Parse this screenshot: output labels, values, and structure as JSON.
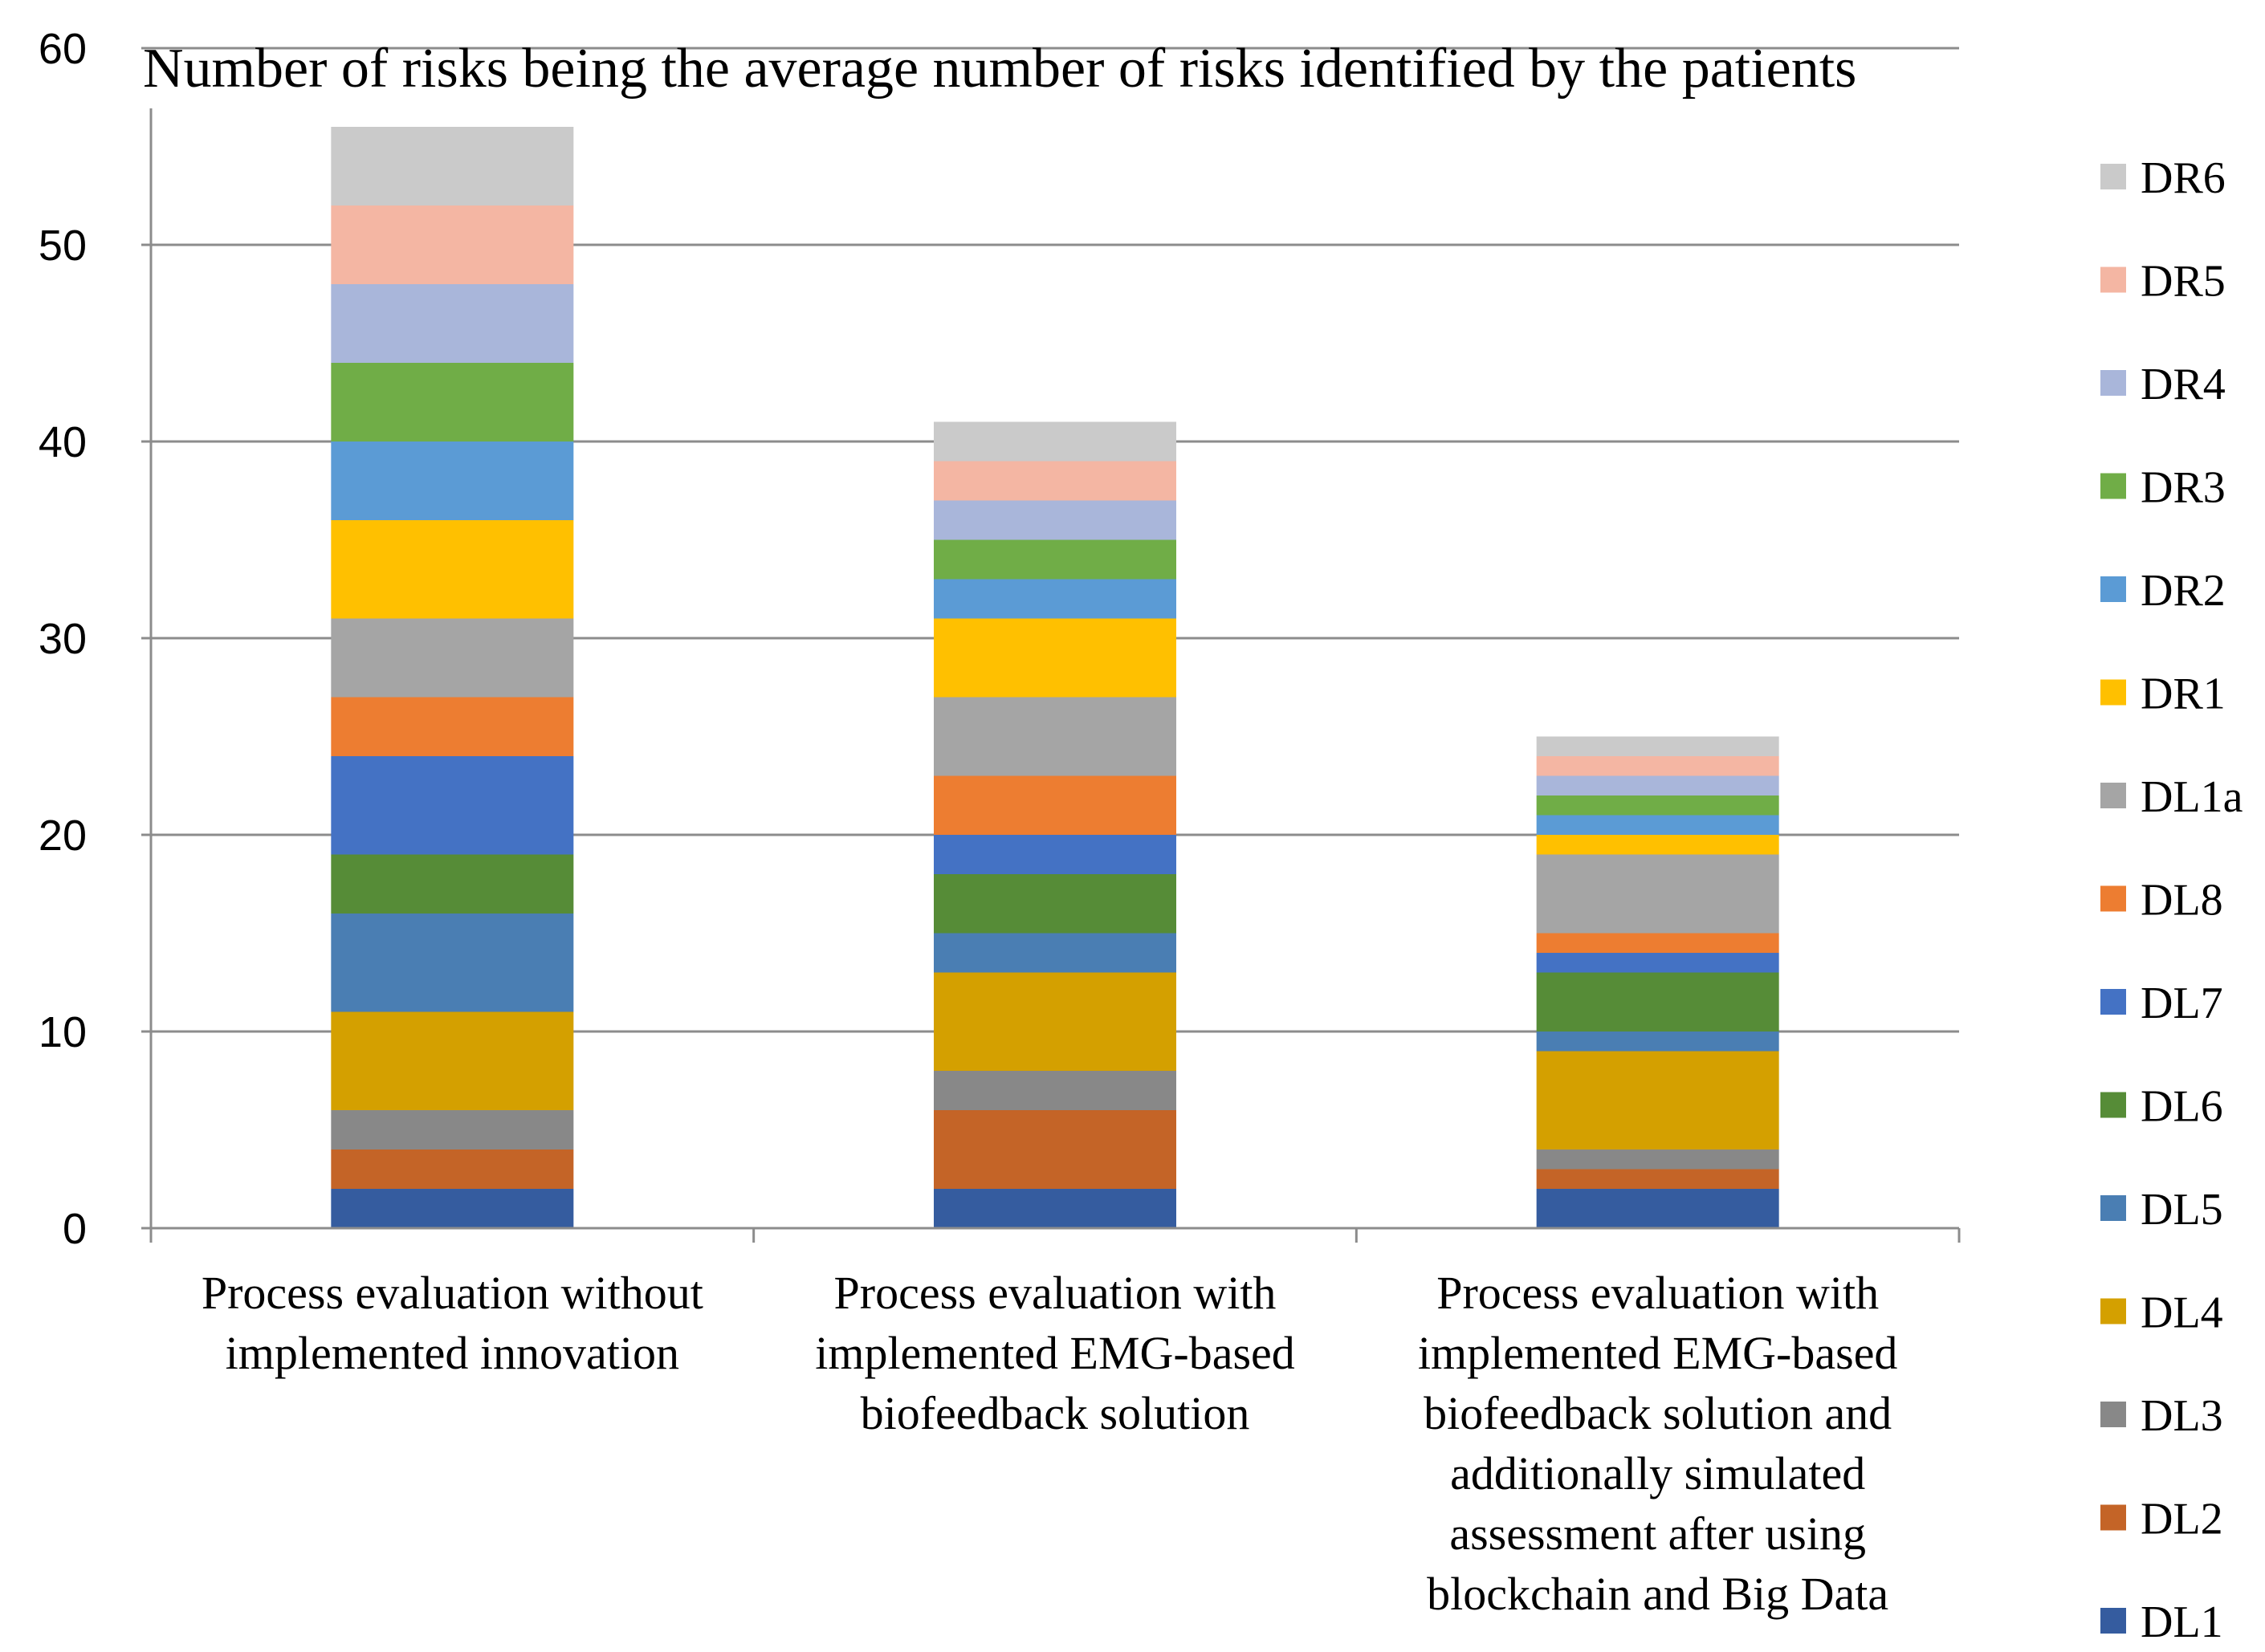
{
  "chart_data": {
    "type": "bar",
    "stacked": true,
    "title": "Number of risks being the average number of risks identified by the patients",
    "ylim": [
      0,
      60
    ],
    "yticks": [
      0,
      10,
      20,
      30,
      40,
      50,
      60
    ],
    "grid": true,
    "legend_position": "right",
    "categories": [
      [
        "Process evaluation without",
        "implemented innovation"
      ],
      [
        "Process evaluation with",
        "implemented EMG-based",
        "biofeedback solution"
      ],
      [
        "Process evaluation with",
        "implemented EMG-based",
        "biofeedback solution and",
        "additionally simulated",
        "assessment after using",
        "blockchain and Big Data"
      ]
    ],
    "series": [
      {
        "name": "DL1",
        "color": "#355C9F",
        "values": [
          2,
          2,
          2
        ]
      },
      {
        "name": "DL2",
        "color": "#C46427",
        "values": [
          2,
          4,
          1
        ]
      },
      {
        "name": "DL3",
        "color": "#888888",
        "values": [
          2,
          2,
          1
        ]
      },
      {
        "name": "DL4",
        "color": "#D4A000",
        "values": [
          5,
          5,
          5
        ]
      },
      {
        "name": "DL5",
        "color": "#4A7EB3",
        "values": [
          5,
          2,
          1
        ]
      },
      {
        "name": "DL6",
        "color": "#568C37",
        "values": [
          3,
          3,
          3
        ]
      },
      {
        "name": "DL7",
        "color": "#4472C4",
        "values": [
          5,
          2,
          1
        ]
      },
      {
        "name": "DL8",
        "color": "#ED7D31",
        "values": [
          3,
          3,
          1
        ]
      },
      {
        "name": "DL1a",
        "color": "#A5A5A5",
        "values": [
          4,
          4,
          4
        ]
      },
      {
        "name": "DR1",
        "color": "#FFC000",
        "values": [
          5,
          4,
          1
        ]
      },
      {
        "name": "DR2",
        "color": "#5B9BD5",
        "values": [
          4,
          2,
          1
        ]
      },
      {
        "name": "DR3",
        "color": "#70AD47",
        "values": [
          4,
          2,
          1
        ]
      },
      {
        "name": "DR4",
        "color": "#A9B6DA",
        "values": [
          4,
          2,
          1
        ]
      },
      {
        "name": "DR5",
        "color": "#F4B6A3",
        "values": [
          4,
          2,
          1
        ]
      },
      {
        "name": "DR6",
        "color": "#CACACA",
        "values": [
          4,
          2,
          1
        ]
      }
    ]
  }
}
